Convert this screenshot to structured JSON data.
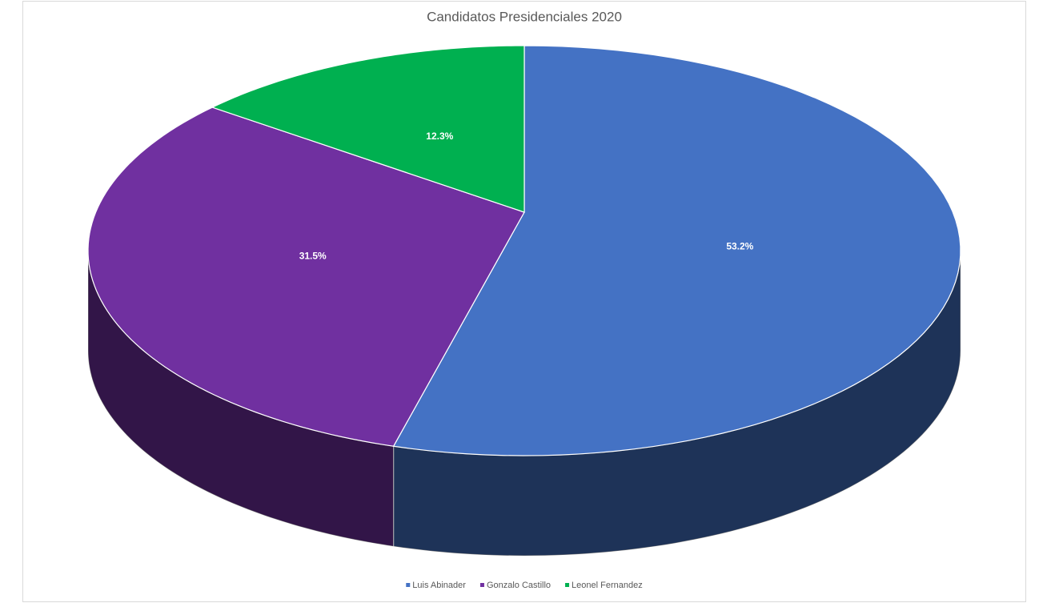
{
  "chart_data": {
    "type": "pie",
    "title": "Candidatos Presidenciales 2020",
    "categories": [
      "Luis Abinader",
      "Gonzalo Castillo",
      "Leonel Fernandez"
    ],
    "values": [
      53.2,
      31.5,
      12.3
    ],
    "value_labels": [
      "53.2%",
      "31.5%",
      "12.3%"
    ],
    "colors": [
      "#4472c4",
      "#7030a0",
      "#00b050"
    ],
    "legend": "bottom"
  }
}
